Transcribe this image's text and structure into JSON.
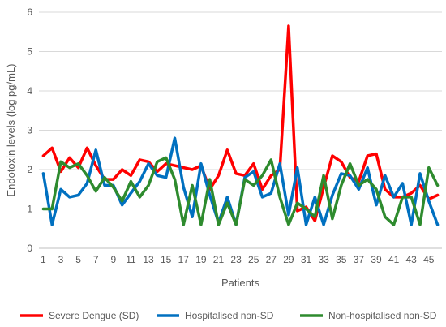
{
  "chart_data": {
    "type": "line",
    "xlabel": "Patients",
    "ylabel": "Endotoxin levels (log pg/mL)",
    "ylim": [
      0,
      6
    ],
    "yticks": [
      0,
      1,
      2,
      3,
      4,
      5,
      6
    ],
    "x": [
      1,
      2,
      3,
      4,
      5,
      6,
      7,
      8,
      9,
      10,
      11,
      12,
      13,
      14,
      15,
      16,
      17,
      18,
      19,
      20,
      21,
      22,
      23,
      24,
      25,
      26,
      27,
      28,
      29,
      30,
      31,
      32,
      33,
      34,
      35,
      36,
      37,
      38,
      39,
      40,
      41,
      42,
      43,
      44,
      45,
      46
    ],
    "xtick_labels": [
      1,
      3,
      5,
      7,
      9,
      11,
      13,
      15,
      17,
      19,
      21,
      23,
      25,
      27,
      29,
      31,
      33,
      35,
      37,
      39,
      41,
      43,
      45
    ],
    "grid": "horizontal",
    "legend_position": "bottom",
    "series": [
      {
        "name": "Severe Dengue (SD)",
        "color": "#FF0000",
        "values": [
          2.35,
          2.55,
          1.95,
          2.3,
          2.05,
          2.55,
          2.1,
          1.75,
          1.75,
          2.0,
          1.85,
          2.25,
          2.2,
          1.95,
          2.15,
          2.1,
          2.05,
          2.0,
          2.1,
          1.5,
          1.85,
          2.5,
          1.9,
          1.85,
          2.15,
          1.5,
          1.85,
          2.0,
          5.65,
          0.95,
          1.05,
          0.7,
          1.55,
          2.35,
          2.2,
          1.8,
          1.7,
          2.35,
          2.4,
          1.5,
          1.3,
          1.3,
          1.4,
          1.6,
          1.25,
          1.35
        ]
      },
      {
        "name": "Hospitalised non-SD",
        "color": "#0070C0",
        "values": [
          1.9,
          0.6,
          1.5,
          1.3,
          1.35,
          1.65,
          2.5,
          1.6,
          1.6,
          1.1,
          1.4,
          1.7,
          2.15,
          1.85,
          1.8,
          2.8,
          1.55,
          0.8,
          2.15,
          1.35,
          0.65,
          1.3,
          0.6,
          1.8,
          1.95,
          1.3,
          1.4,
          2.15,
          0.85,
          2.05,
          0.6,
          1.3,
          0.6,
          1.35,
          1.9,
          1.85,
          1.5,
          2.05,
          1.1,
          1.85,
          1.3,
          1.65,
          0.6,
          1.9,
          1.2,
          0.6
        ]
      },
      {
        "name": "Non-hospitalised non-SD",
        "color": "#2E8B2E",
        "values": [
          1.0,
          1.0,
          2.2,
          2.05,
          2.15,
          1.85,
          1.45,
          1.8,
          1.55,
          1.2,
          1.7,
          1.3,
          1.6,
          2.2,
          2.3,
          1.75,
          0.6,
          1.6,
          0.6,
          1.75,
          0.6,
          1.15,
          0.6,
          1.75,
          1.6,
          1.85,
          2.25,
          1.3,
          0.6,
          1.15,
          1.0,
          0.8,
          1.85,
          0.75,
          1.6,
          2.15,
          1.6,
          1.75,
          1.5,
          0.8,
          0.6,
          1.3,
          1.3,
          0.6,
          2.05,
          1.6
        ]
      }
    ]
  }
}
